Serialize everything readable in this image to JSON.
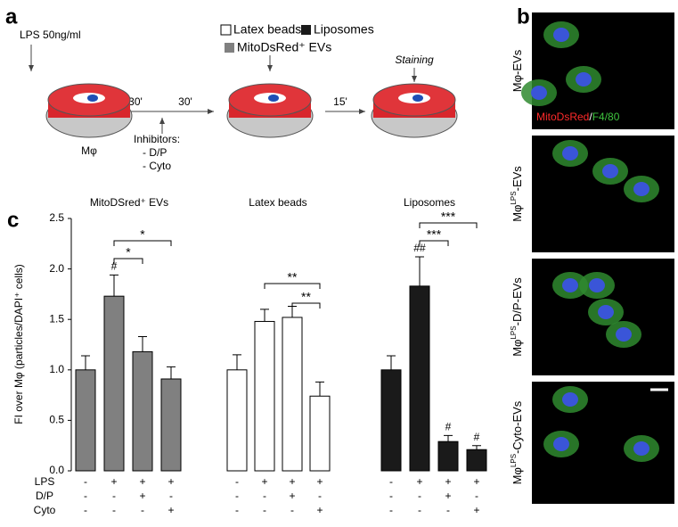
{
  "panel_a": {
    "label": "a",
    "lps": "LPS 50ng/ml",
    "times": [
      "30'",
      "30'",
      "15'"
    ],
    "inhibitors": [
      "Inhibitors:",
      "- D/P",
      "- Cyto"
    ],
    "cell": "Mφ",
    "legend": [
      "Latex beads",
      "Liposomes",
      "MitoDsRed⁺ EVs"
    ],
    "staining": "Staining"
  },
  "panel_b": {
    "label": "b",
    "stain": [
      "MitoDsRed",
      "/",
      "F4/80"
    ],
    "images": [
      {
        "base": "Mφ",
        "sup": "",
        "rest": "-EVs"
      },
      {
        "base": "Mφ",
        "sup": "LPS",
        "rest": "-EVs"
      },
      {
        "base": "Mφ",
        "sup": "LPS",
        "rest": "-D/P-EVs"
      },
      {
        "base": "Mφ",
        "sup": "LPS",
        "rest": "-Cyto-EVs"
      }
    ]
  },
  "chart_data": {
    "type": "bar",
    "label": "c",
    "y_label": "FI over Mφ (particles/DAPI⁺ cells)",
    "ylim": [
      0,
      2.5
    ],
    "yticks": [
      {
        "value": 0,
        "label": "0.0"
      },
      0.5,
      {
        "value": 1,
        "label": "1.0"
      },
      1.5,
      {
        "value": 2,
        "label": "2.0"
      },
      2.5
    ],
    "series": [
      {
        "name": "MitoDSred⁺ EVs",
        "color": "#808080",
        "values": [
          1.0,
          1.73,
          1.18,
          0.91
        ],
        "errors": [
          0.14,
          0.21,
          0.15,
          0.12
        ],
        "marks": [
          null,
          "#",
          null,
          null
        ]
      },
      {
        "name": "Latex beads",
        "color": "#ffffff",
        "values": [
          1.0,
          1.48,
          1.52,
          0.74
        ],
        "errors": [
          0.15,
          0.12,
          0.11,
          0.14
        ],
        "marks": [
          null,
          null,
          null,
          null
        ]
      },
      {
        "name": "Liposomes",
        "color": "#1a1a1a",
        "values": [
          1.0,
          1.83,
          0.29,
          0.21
        ],
        "errors": [
          0.14,
          0.29,
          0.06,
          0.04
        ],
        "marks": [
          null,
          "##",
          "#",
          "#"
        ]
      }
    ],
    "significance": [
      [
        "*",
        "*"
      ],
      [
        "**",
        "**"
      ],
      [
        "***",
        "***"
      ]
    ],
    "treatments": [
      {
        "name": "LPS",
        "signs": [
          "-",
          "+",
          "+",
          "+",
          "-",
          "+",
          "+",
          "+",
          "-",
          "+",
          "+",
          "+"
        ]
      },
      {
        "name": "D/P",
        "signs": [
          "-",
          "-",
          "+",
          "-",
          "-",
          "-",
          "+",
          "-",
          "-",
          "-",
          "+",
          "-"
        ]
      },
      {
        "name": "Cyto",
        "signs": [
          "-",
          "-",
          "-",
          "+",
          "-",
          "-",
          "-",
          "+",
          "-",
          "-",
          "-",
          "+"
        ]
      }
    ]
  }
}
